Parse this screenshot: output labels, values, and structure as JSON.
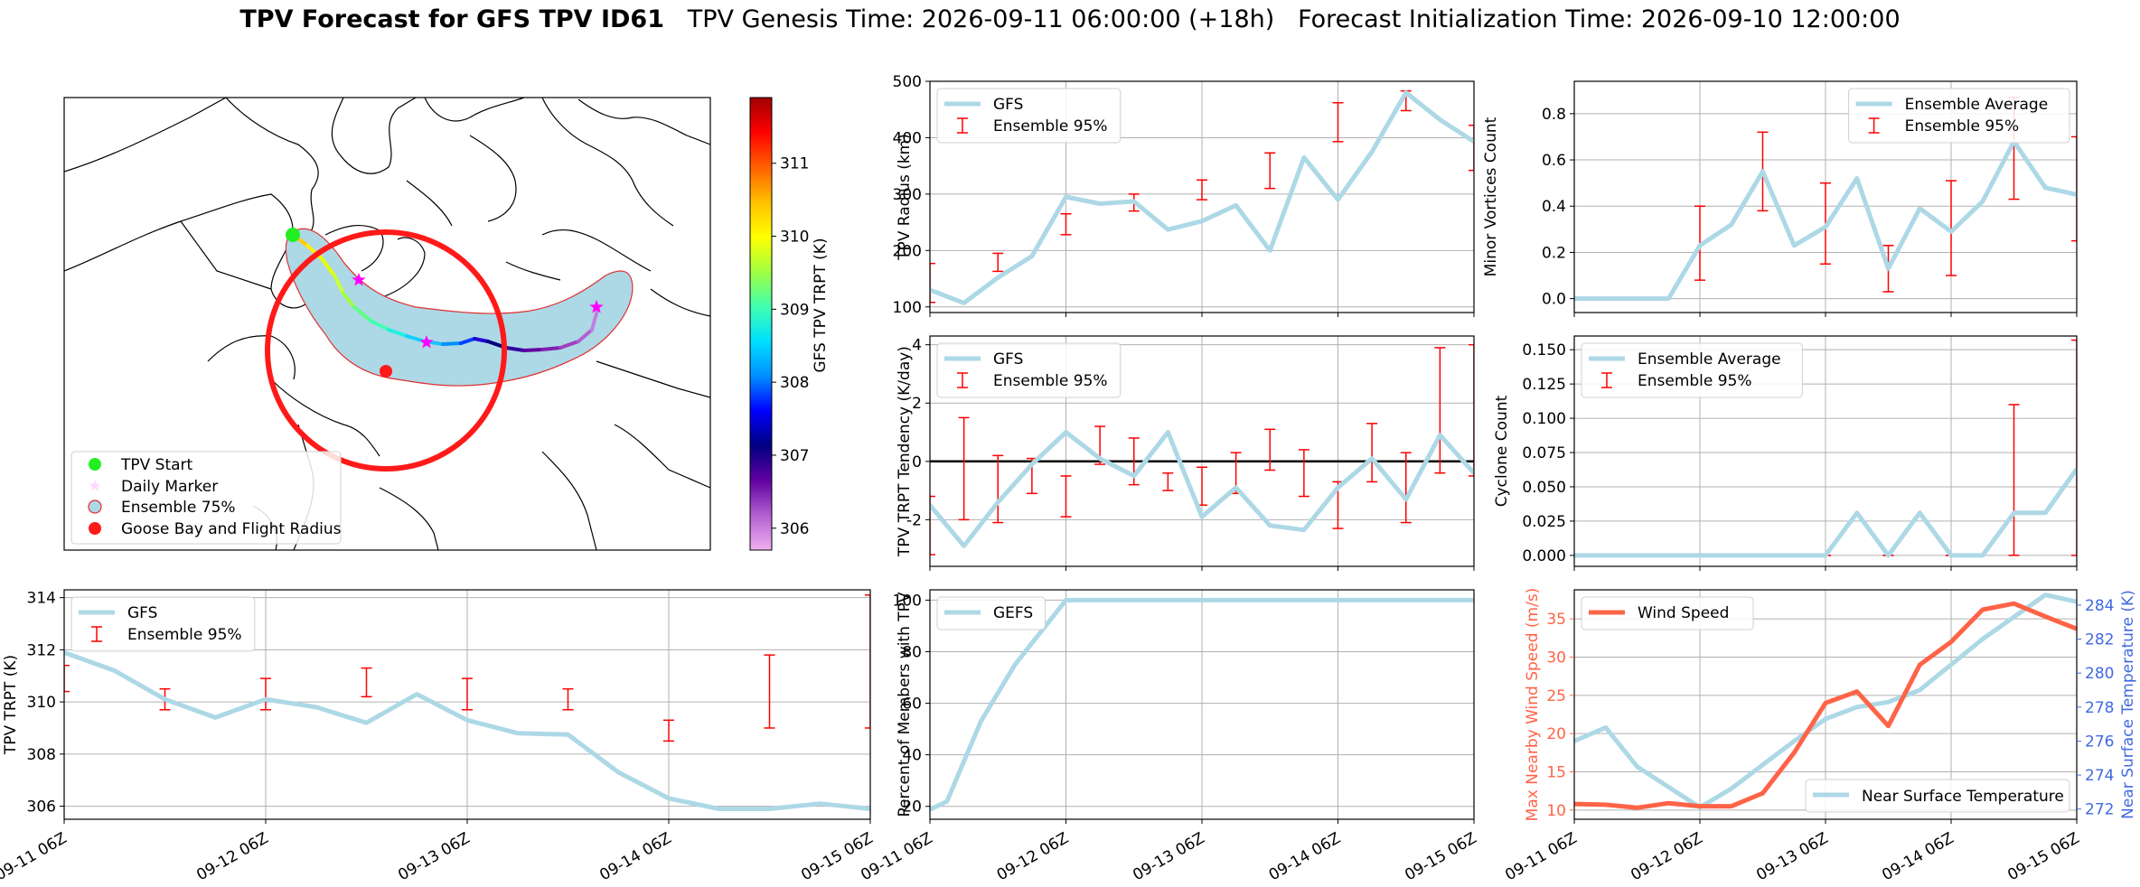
{
  "figure": {
    "title_bold": "TPV Forecast for GFS TPV ID61",
    "title_genesis": "TPV Genesis Time: 2026-09-11 06:00:00 (+18h)",
    "title_init": "Forecast Initialization Time: 2026-09-10 12:00:00"
  },
  "map": {
    "colorbar": {
      "label": "GFS TPV TRPT (K)",
      "ticks": [
        306,
        307,
        308,
        309,
        310,
        311
      ],
      "range": [
        305.7,
        311.9
      ]
    },
    "legend": [
      "TPV Start",
      "Daily Marker",
      "Ensemble 75%",
      "Goose Bay and Flight Radius"
    ],
    "colors": {
      "start": "#22ee22",
      "daily": "#ff00ff",
      "ensemble_fill": "#add8e6",
      "ensemble_edge": "#e03030",
      "goose_bay": "#ff1a1a"
    }
  },
  "x_ticks": [
    "09-11 06Z",
    "09-12 06Z",
    "09-13 06Z",
    "09-14 06Z",
    "09-15 06Z"
  ],
  "colors": {
    "main_line": "#add8e6",
    "error_bar": "#ff0000",
    "wind": "#ff6347",
    "temp_axis": "#4169e1"
  },
  "chart_data": [
    {
      "id": "radius",
      "type": "line",
      "ylabel": "TPV Radius (km)",
      "ylim": [
        90,
        500
      ],
      "yticks": [
        100,
        200,
        300,
        400,
        500
      ],
      "legend_loc": "upper left",
      "line_name": "GFS",
      "err_name": "Ensemble 95%",
      "x": [
        0,
        0.25,
        0.5,
        0.75,
        1,
        1.25,
        1.5,
        1.75,
        2,
        2.25,
        2.5,
        2.75,
        3,
        3.25,
        3.5,
        3.75,
        4
      ],
      "values": [
        130,
        107,
        152,
        190,
        295,
        283,
        287,
        237,
        252,
        280,
        200,
        365,
        290,
        375,
        480,
        432,
        393
      ],
      "errorbars": [
        {
          "x": 0,
          "low": 108,
          "high": 177
        },
        {
          "x": 0.5,
          "low": 163,
          "high": 195
        },
        {
          "x": 1,
          "low": 228,
          "high": 265
        },
        {
          "x": 1.5,
          "low": 270,
          "high": 300
        },
        {
          "x": 2,
          "low": 290,
          "high": 325
        },
        {
          "x": 2.5,
          "low": 310,
          "high": 373
        },
        {
          "x": 3,
          "low": 393,
          "high": 462
        },
        {
          "x": 3.5,
          "low": 448,
          "high": 483
        },
        {
          "x": 4,
          "low": 342,
          "high": 422
        }
      ]
    },
    {
      "id": "minor",
      "type": "line",
      "ylabel": "Minor Vortices Count",
      "ylim": [
        -0.06,
        0.94
      ],
      "yticks": [
        0.0,
        0.2,
        0.4,
        0.6,
        0.8
      ],
      "tick_format": "1dp",
      "legend_loc": "upper right",
      "line_name": "Ensemble Average",
      "err_name": "Ensemble 95%",
      "x": [
        0,
        0.25,
        0.5,
        0.75,
        1,
        1.25,
        1.5,
        1.75,
        2,
        2.25,
        2.5,
        2.75,
        3,
        3.25,
        3.5,
        3.75,
        4
      ],
      "values": [
        0,
        0,
        0,
        0,
        0.23,
        0.32,
        0.55,
        0.23,
        0.31,
        0.52,
        0.13,
        0.39,
        0.29,
        0.42,
        0.68,
        0.48,
        0.45
      ],
      "errorbars": [
        {
          "x": 0.5,
          "low": 0,
          "high": 0
        },
        {
          "x": 1,
          "low": 0.08,
          "high": 0.4
        },
        {
          "x": 1.5,
          "low": 0.38,
          "high": 0.72
        },
        {
          "x": 2,
          "low": 0.15,
          "high": 0.5
        },
        {
          "x": 2.5,
          "low": 0.03,
          "high": 0.23
        },
        {
          "x": 3,
          "low": 0.1,
          "high": 0.51
        },
        {
          "x": 3.5,
          "low": 0.43,
          "high": 0.87
        },
        {
          "x": 4,
          "low": 0.25,
          "high": 0.7
        }
      ]
    },
    {
      "id": "tendency",
      "type": "line",
      "ylabel": "TPV TRPT Tendency (K/day)",
      "ylim": [
        -3.6,
        4.3
      ],
      "yticks": [
        -2,
        0,
        2,
        4
      ],
      "zero_line": true,
      "legend_loc": "upper left",
      "line_name": "GFS",
      "err_name": "Ensemble 95%",
      "x": [
        0,
        0.25,
        0.5,
        0.75,
        1,
        1.25,
        1.5,
        1.75,
        2,
        2.25,
        2.5,
        2.75,
        3,
        3.25,
        3.5,
        3.75,
        4
      ],
      "values": [
        -1.5,
        -2.9,
        -1.4,
        -0.1,
        1.0,
        0.1,
        -0.5,
        1.0,
        -1.9,
        -0.9,
        -2.2,
        -2.35,
        -0.9,
        0.1,
        -1.3,
        0.9,
        -0.4
      ],
      "errorbars": [
        {
          "x": 0,
          "low": -3.2,
          "high": -1.2
        },
        {
          "x": 0.25,
          "low": -2.0,
          "high": 1.5
        },
        {
          "x": 0.5,
          "low": -2.1,
          "high": 0.2
        },
        {
          "x": 0.75,
          "low": -1.1,
          "high": 0.1
        },
        {
          "x": 1,
          "low": -1.9,
          "high": -0.5
        },
        {
          "x": 1.25,
          "low": -0.1,
          "high": 1.2
        },
        {
          "x": 1.5,
          "low": -0.8,
          "high": 0.8
        },
        {
          "x": 1.75,
          "low": -1.0,
          "high": -0.4
        },
        {
          "x": 2,
          "low": -1.5,
          "high": -0.2
        },
        {
          "x": 2.25,
          "low": -1.1,
          "high": 0.3
        },
        {
          "x": 2.5,
          "low": -0.3,
          "high": 1.1
        },
        {
          "x": 2.75,
          "low": -1.2,
          "high": 0.4
        },
        {
          "x": 3,
          "low": -2.3,
          "high": -0.7
        },
        {
          "x": 3.25,
          "low": -0.7,
          "high": 1.3
        },
        {
          "x": 3.5,
          "low": -2.1,
          "high": 0.3
        },
        {
          "x": 3.75,
          "low": -0.4,
          "high": 3.9
        },
        {
          "x": 4,
          "low": -0.5,
          "high": 4.0
        }
      ]
    },
    {
      "id": "cyclone",
      "type": "line",
      "ylabel": "Cyclone Count",
      "ylim": [
        -0.008,
        0.16
      ],
      "yticks": [
        0.0,
        0.025,
        0.05,
        0.075,
        0.1,
        0.125,
        0.15
      ],
      "tick_format": "3dp",
      "legend_loc": "upper left",
      "line_name": "Ensemble Average",
      "err_name": "Ensemble 95%",
      "x": [
        0,
        0.25,
        0.5,
        0.75,
        1,
        1.25,
        1.5,
        1.75,
        2,
        2.25,
        2.5,
        2.75,
        3,
        3.25,
        3.5,
        3.75,
        4
      ],
      "values": [
        0,
        0,
        0,
        0,
        0,
        0,
        0,
        0,
        0,
        0.031,
        0,
        0.031,
        0,
        0,
        0.031,
        0.031,
        0.063
      ],
      "errorbars": [
        {
          "x": 0.5,
          "low": 0,
          "high": 0
        },
        {
          "x": 1,
          "low": 0,
          "high": 0
        },
        {
          "x": 1.5,
          "low": 0,
          "high": 0
        },
        {
          "x": 2,
          "low": 0,
          "high": 0
        },
        {
          "x": 2.5,
          "low": 0,
          "high": 0
        },
        {
          "x": 3,
          "low": 0,
          "high": 0
        },
        {
          "x": 3.5,
          "low": 0,
          "high": 0.11
        },
        {
          "x": 4,
          "low": 0,
          "high": 0.157
        }
      ]
    },
    {
      "id": "trpt",
      "type": "line",
      "ylabel": "TPV TRPT (K)",
      "ylim": [
        305.5,
        314.3
      ],
      "yticks": [
        306,
        308,
        310,
        312,
        314
      ],
      "legend_loc": "upper left",
      "line_name": "GFS",
      "err_name": "Ensemble 95%",
      "x_tick_labels": true,
      "x": [
        0,
        0.25,
        0.5,
        0.75,
        1,
        1.25,
        1.5,
        1.75,
        2,
        2.25,
        2.5,
        2.75,
        3,
        3.25,
        3.5,
        3.75,
        4
      ],
      "values": [
        311.9,
        311.2,
        310.1,
        309.4,
        310.1,
        309.8,
        309.2,
        310.3,
        309.3,
        308.8,
        308.75,
        307.3,
        306.3,
        305.9,
        305.9,
        306.1,
        305.9
      ],
      "errorbars": [
        {
          "x": 0,
          "low": 310.4,
          "high": 311.4
        },
        {
          "x": 0.5,
          "low": 309.7,
          "high": 310.5
        },
        {
          "x": 1,
          "low": 309.7,
          "high": 310.9
        },
        {
          "x": 1.5,
          "low": 310.2,
          "high": 311.3
        },
        {
          "x": 2,
          "low": 309.7,
          "high": 310.9
        },
        {
          "x": 2.5,
          "low": 309.7,
          "high": 310.5
        },
        {
          "x": 3,
          "low": 308.5,
          "high": 309.3
        },
        {
          "x": 3.5,
          "low": 309.0,
          "high": 311.8
        },
        {
          "x": 4,
          "low": 309.0,
          "high": 314.1
        }
      ]
    },
    {
      "id": "percent",
      "type": "line",
      "ylabel": "Percent of Members with TPV",
      "ylim": [
        15,
        104
      ],
      "yticks": [
        20,
        40,
        60,
        80,
        100
      ],
      "legend_loc": "upper left",
      "line_name": "GEFS",
      "x_tick_labels": true,
      "x": [
        0,
        0.125,
        0.375,
        0.625,
        1,
        1.5,
        2,
        2.5,
        3,
        3.5,
        4
      ],
      "values": [
        18.75,
        21.9,
        53,
        75,
        100,
        100,
        100,
        100,
        100,
        100,
        100
      ]
    },
    {
      "id": "wind_temp",
      "type": "line",
      "ylabel": "Max Nearby Wind Speed (m/s)",
      "ylim": [
        8.8,
        38.8
      ],
      "yticks": [
        10,
        15,
        20,
        25,
        30,
        35
      ],
      "y2label": "Near Surface Temperature (K)",
      "y2lim": [
        271.4,
        284.9
      ],
      "y2ticks": [
        272,
        274,
        276,
        278,
        280,
        282,
        284
      ],
      "x_tick_labels": true,
      "wind_name": "Wind Speed",
      "temp_name": "Near Surface Temperature",
      "x": [
        0,
        0.25,
        0.5,
        0.75,
        1,
        1.25,
        1.5,
        1.75,
        2,
        2.25,
        2.5,
        2.75,
        3,
        3.25,
        3.5,
        3.75,
        4
      ],
      "wind": [
        10.8,
        10.7,
        10.3,
        10.9,
        10.5,
        10.5,
        12.2,
        17.5,
        24.0,
        25.5,
        21.0,
        29.0,
        32.0,
        36.2,
        37.0,
        35.3,
        33.7
      ],
      "temp": [
        276.0,
        276.8,
        274.5,
        273.3,
        272.1,
        273.2,
        274.6,
        276.0,
        277.3,
        278.0,
        278.3,
        279.0,
        280.5,
        282.0,
        283.3,
        284.6,
        284.2
      ]
    }
  ]
}
